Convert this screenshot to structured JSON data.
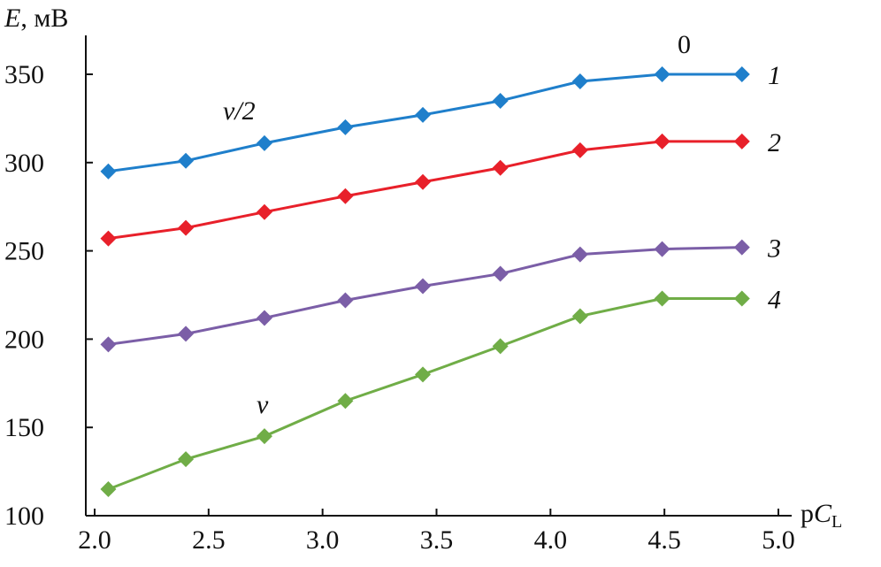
{
  "chart_data": {
    "type": "line",
    "title": "",
    "ylabel_italic": "E",
    "ylabel_rest": ", мВ",
    "xlabel_p": "p",
    "xlabel_italic": "C",
    "xlabel_sub": "L",
    "xlim": [
      2.0,
      5.0
    ],
    "ylim": [
      100,
      350
    ],
    "xticks": [
      "2.0",
      "2.5",
      "3.0",
      "3.5",
      "4.0",
      "4.5",
      "5.0"
    ],
    "yticks": [
      "100",
      "150",
      "200",
      "250",
      "300",
      "350"
    ],
    "grid": false,
    "x": [
      2.06,
      2.4,
      2.745,
      3.1,
      3.44,
      3.78,
      4.13,
      4.49,
      4.84
    ],
    "series": [
      {
        "name": "1",
        "color": "#1f7fcb",
        "values": [
          295,
          301,
          311,
          320,
          327,
          335,
          346,
          350,
          350
        ]
      },
      {
        "name": "2",
        "color": "#e8202a",
        "values": [
          257,
          263,
          272,
          281,
          289,
          297,
          307,
          312,
          312
        ]
      },
      {
        "name": "3",
        "color": "#7b5ea7",
        "values": [
          197,
          203,
          212,
          222,
          230,
          237,
          248,
          251,
          252
        ]
      },
      {
        "name": "4",
        "color": "#70ad47",
        "values": [
          115,
          132,
          145,
          165,
          180,
          196,
          213,
          223,
          223
        ]
      }
    ],
    "annotations": {
      "zero": "0",
      "v_half": "v/2",
      "v": "v"
    }
  }
}
